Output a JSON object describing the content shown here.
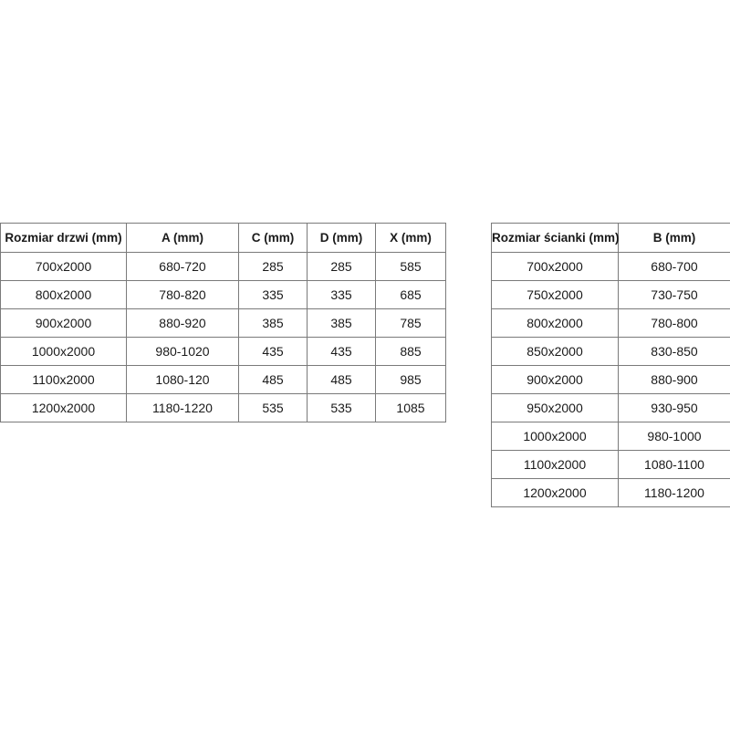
{
  "door_table": {
    "headers": [
      "Rozmiar drzwi (mm)",
      "A (mm)",
      "C (mm)",
      "D (mm)",
      "X (mm)"
    ],
    "rows": [
      [
        "700x2000",
        "680-720",
        "285",
        "285",
        "585"
      ],
      [
        "800x2000",
        "780-820",
        "335",
        "335",
        "685"
      ],
      [
        "900x2000",
        "880-920",
        "385",
        "385",
        "785"
      ],
      [
        "1000x2000",
        "980-1020",
        "435",
        "435",
        "885"
      ],
      [
        "1100x2000",
        "1080-120",
        "485",
        "485",
        "985"
      ],
      [
        "1200x2000",
        "1180-1220",
        "535",
        "535",
        "1085"
      ]
    ]
  },
  "wall_table": {
    "headers": [
      "Rozmiar ścianki (mm)",
      "B (mm)"
    ],
    "rows": [
      [
        "700x2000",
        "680-700"
      ],
      [
        "750x2000",
        "730-750"
      ],
      [
        "800x2000",
        "780-800"
      ],
      [
        "850x2000",
        "830-850"
      ],
      [
        "900x2000",
        "880-900"
      ],
      [
        "950x2000",
        "930-950"
      ],
      [
        "1000x2000",
        "980-1000"
      ],
      [
        "1100x2000",
        "1080-1100"
      ],
      [
        "1200x2000",
        "1180-1200"
      ]
    ]
  }
}
